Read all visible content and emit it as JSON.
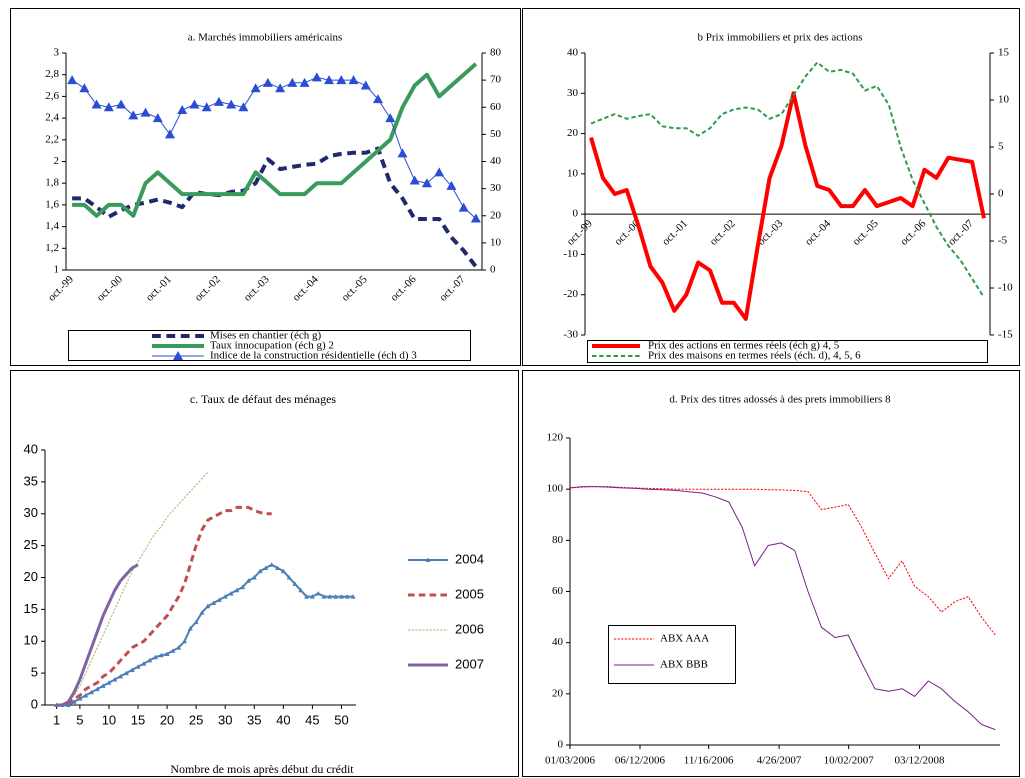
{
  "chart_data": [
    {
      "type": "line",
      "title": "a. Marchés immobiliers américains",
      "categories": [
        "oct.-99",
        null,
        null,
        null,
        "oct.-00",
        null,
        null,
        null,
        "oct.-01",
        null,
        null,
        null,
        "oct.-02",
        null,
        null,
        null,
        "oct.-03",
        null,
        null,
        null,
        "oct.-04",
        null,
        null,
        null,
        "oct.-05",
        null,
        null,
        null,
        "oct.-06",
        null,
        null,
        null,
        "oct.-07",
        null
      ],
      "ylim": [
        1,
        3
      ],
      "yticks": [
        1,
        {
          "value": 1.2,
          "label": "1,2"
        },
        {
          "value": 1.4,
          "label": "1,4"
        },
        {
          "value": 1.6,
          "label": "1,6"
        },
        {
          "value": 1.8,
          "label": "1,8"
        },
        2,
        {
          "value": 2.2,
          "label": "2,2"
        },
        {
          "value": 2.4,
          "label": "2,4"
        },
        {
          "value": 2.6,
          "label": "2,6"
        },
        {
          "value": 2.8,
          "label": "2,8"
        },
        3
      ],
      "y2lim": [
        0,
        80
      ],
      "y2ticks": [
        0,
        10,
        20,
        30,
        40,
        50,
        60,
        70,
        80
      ],
      "legend": "bottom",
      "series": [
        {
          "name": "Mises en chantier (éch g)",
          "color": "#1f2a6e",
          "linestyle": "dashed",
          "linewidth": 4,
          "values": [
            1.66,
            1.66,
            1.58,
            1.49,
            1.55,
            1.6,
            1.62,
            1.65,
            1.62,
            1.58,
            1.72,
            1.7,
            1.69,
            1.72,
            1.73,
            1.8,
            2.02,
            1.93,
            1.95,
            1.97,
            1.98,
            2.05,
            2.07,
            2.08,
            2.08,
            2.12,
            1.8,
            1.66,
            1.47,
            1.47,
            1.47,
            1.3,
            1.18,
            1.03
          ]
        },
        {
          "name": "Taux innocupation (éch g) 2",
          "color": "#3a9a5b",
          "linestyle": "solid",
          "linewidth": 4,
          "values": [
            1.6,
            1.6,
            1.5,
            1.6,
            1.6,
            1.5,
            1.8,
            1.9,
            1.8,
            1.7,
            1.7,
            1.7,
            1.7,
            1.7,
            1.7,
            1.9,
            1.8,
            1.7,
            1.7,
            1.7,
            1.8,
            1.8,
            1.8,
            1.9,
            2.0,
            2.1,
            2.2,
            2.5,
            2.7,
            2.8,
            2.6,
            2.7,
            2.8,
            2.9
          ]
        },
        {
          "name": "Indice de la construction résidentielle (éch d) 3",
          "color": "#2b4dd6",
          "linestyle": "solid",
          "linewidth": 1,
          "marker": "triangle",
          "axis": "y2",
          "values": [
            70,
            67,
            61,
            60,
            61,
            57,
            58,
            56,
            50,
            59,
            61,
            60,
            62,
            61,
            60,
            67,
            69,
            67,
            69,
            69,
            71,
            70,
            70,
            70,
            68,
            63,
            56,
            43,
            33,
            32,
            36,
            31,
            23,
            19
          ]
        }
      ]
    },
    {
      "type": "line",
      "title": "b Prix immobiliers et prix des actions",
      "categories": [
        "oct.-99",
        null,
        null,
        null,
        "oct.-00",
        null,
        null,
        null,
        "oct.-01",
        null,
        null,
        null,
        "oct.-02",
        null,
        null,
        null,
        "oct.-03",
        null,
        null,
        null,
        "oct.-04",
        null,
        null,
        null,
        "oct.-05",
        null,
        null,
        null,
        "oct.-06",
        null,
        null,
        null,
        "oct.-07",
        null
      ],
      "ylim": [
        -30,
        40
      ],
      "yticks": [
        -30,
        -20,
        -10,
        0,
        10,
        20,
        30,
        40
      ],
      "y2lim": [
        -15,
        15
      ],
      "y2ticks": [
        -15,
        -10,
        -5,
        0,
        5,
        10,
        15
      ],
      "legend": "bottom",
      "series": [
        {
          "name": "Prix des actions en termes réels (éch g) 4, 5",
          "color": "#ff0000",
          "linestyle": "solid",
          "linewidth": 4,
          "values": [
            19,
            9,
            5,
            6,
            -3,
            -13,
            -17,
            -24,
            -20,
            -12,
            -14,
            -22,
            -22,
            -26,
            -8,
            9,
            17,
            30,
            17,
            7,
            6,
            2,
            2,
            6,
            2,
            3,
            4,
            2,
            11,
            9,
            14,
            13.5,
            13,
            -1
          ]
        },
        {
          "name": "Prix des maisons en termes réels (éch. d), 4, 5, 6",
          "color": "#2e9a4a",
          "linestyle": "dashed",
          "linewidth": 2,
          "axis": "y2",
          "values": [
            7.5,
            8,
            8.5,
            8,
            8.3,
            8.5,
            7.2,
            7,
            7,
            6.2,
            7,
            8.5,
            9,
            9.2,
            9,
            8,
            8.5,
            10.5,
            12.5,
            14,
            13,
            13.2,
            12.8,
            11,
            11.5,
            9.5,
            5,
            1.5,
            -1,
            -3.5,
            -5.5,
            -7,
            -9,
            -11
          ]
        }
      ]
    },
    {
      "type": "line",
      "title": "c. Taux de défaut des ménages",
      "xlabel": "Nombre de mois après début du crédit",
      "x": [
        1,
        2,
        3,
        4,
        5,
        6,
        7,
        8,
        9,
        10,
        11,
        12,
        13,
        14,
        15,
        16,
        17,
        18,
        19,
        20,
        21,
        22,
        23,
        24,
        25,
        26,
        27,
        28,
        29,
        30,
        31,
        32,
        33,
        34,
        35,
        36,
        37,
        38,
        39,
        40,
        41,
        42,
        43,
        44,
        45,
        46,
        47,
        48,
        49,
        50,
        51,
        52
      ],
      "xlim": [
        -1,
        52.5
      ],
      "xticks": [
        1,
        5,
        10,
        15,
        20,
        25,
        30,
        35,
        40,
        45,
        50
      ],
      "ylim": [
        0,
        40
      ],
      "yticks": [
        0,
        5,
        10,
        15,
        20,
        25,
        30,
        35,
        40
      ],
      "legend": "right",
      "series": [
        {
          "name": "2004",
          "color": "#4a7ebb",
          "linestyle": "solid",
          "linewidth": 2,
          "marker": "triangle",
          "values": [
            0,
            0,
            0,
            0.5,
            1,
            1.5,
            2,
            2.5,
            3,
            3.5,
            4,
            4.5,
            5,
            5.5,
            6,
            6.5,
            7,
            7.5,
            7.8,
            8,
            8.5,
            9,
            10,
            12,
            13,
            14.5,
            15.5,
            16,
            16.5,
            17,
            17.5,
            18,
            18.5,
            19.5,
            20,
            21,
            21.5,
            22,
            21.5,
            21,
            20,
            19,
            18,
            17,
            17,
            17.5,
            17,
            17,
            17,
            17,
            17,
            17
          ]
        },
        {
          "name": "2005",
          "color": "#c0504d",
          "linestyle": "dashed",
          "linewidth": 3,
          "values": [
            0,
            0,
            0.3,
            1,
            1.5,
            2.5,
            3,
            3.5,
            4.5,
            5,
            6,
            7,
            8,
            9,
            9.5,
            10,
            11,
            12,
            13,
            14,
            15.5,
            17,
            19,
            22,
            25,
            27.5,
            29,
            29.5,
            30,
            30.5,
            30.5,
            31,
            31,
            31,
            30.5,
            30.2,
            30,
            30,
            null,
            null,
            null,
            null,
            null,
            null,
            null,
            null,
            null,
            null,
            null,
            null,
            null,
            null
          ]
        },
        {
          "name": "2006",
          "color": "#9bbb59",
          "linestyle": "dashed",
          "linewidth": 1,
          "values": [
            0,
            0,
            0.5,
            1.5,
            3,
            5,
            7,
            9,
            11,
            13,
            15,
            17,
            19,
            21,
            22.5,
            24,
            25.5,
            27,
            28,
            29.5,
            30.5,
            31.5,
            32.5,
            33.5,
            34.5,
            35.5,
            36.5,
            null,
            null,
            null,
            null,
            null,
            null,
            null,
            null,
            null,
            null,
            null,
            null,
            null,
            null,
            null,
            null,
            null,
            null,
            null,
            null,
            null,
            null,
            null,
            null,
            null
          ]
        },
        {
          "name": "2007",
          "color": "#8064a2",
          "linestyle": "solid",
          "linewidth": 3,
          "values": [
            0,
            0,
            0.5,
            2,
            4,
            6.5,
            9,
            11.5,
            14,
            16,
            18,
            19.5,
            20.5,
            21.5,
            22,
            null,
            null,
            null,
            null,
            null,
            null,
            null,
            null,
            null,
            null,
            null,
            null,
            null,
            null,
            null,
            null,
            null,
            null,
            null,
            null,
            null,
            null,
            null,
            null,
            null,
            null,
            null,
            null,
            null,
            null,
            null,
            null,
            null,
            null,
            null,
            null,
            null
          ]
        }
      ]
    },
    {
      "type": "line",
      "title": "d. Prix des titres adossés à des prets immobiliers 8",
      "x": [
        "2006-01-03",
        "2006-02-01",
        "2006-03-01",
        "2006-04-01",
        "2006-05-01",
        "2006-06-01",
        "2006-07-01",
        "2006-08-01",
        "2006-09-01",
        "2006-10-01",
        "2006-11-01",
        "2006-12-01",
        "2007-01-01",
        "2007-02-01",
        "2007-03-01",
        "2007-04-01",
        "2007-05-01",
        "2007-06-01",
        "2007-07-01",
        "2007-08-01",
        "2007-09-01",
        "2007-10-01",
        "2007-11-01",
        "2007-12-01",
        "2008-01-01",
        "2008-02-01",
        "2008-03-01",
        "2008-04-01",
        "2008-05-01",
        "2008-06-01",
        "2008-07-01",
        "2008-08-01",
        "2008-09-01"
      ],
      "xlim": [
        "2006-01-03",
        "2008-09-12"
      ],
      "xticks": [
        {
          "value": "2006-01-03",
          "label": "01/03/2006"
        },
        {
          "value": "2006-06-12",
          "label": "06/12/2006"
        },
        {
          "value": "2006-11-16",
          "label": "11/16/2006"
        },
        {
          "value": "2007-04-26",
          "label": "4/26/2007"
        },
        {
          "value": "2007-10-02",
          "label": "10/02/2007"
        },
        {
          "value": "2008-03-12",
          "label": "03/12/2008"
        }
      ],
      "ylim": [
        0,
        120
      ],
      "yticks": [
        0,
        20,
        40,
        60,
        80,
        100,
        120
      ],
      "legend": "inside",
      "series": [
        {
          "name": "ABX AAA",
          "color": "#ff0000",
          "linestyle": "dashed",
          "linewidth": 1,
          "values": [
            100.5,
            100.8,
            101,
            101,
            100.7,
            100.5,
            100.3,
            100.2,
            100,
            100,
            100,
            100,
            100,
            100,
            100,
            99.8,
            99.7,
            99.5,
            99,
            92,
            93,
            94,
            85,
            75,
            65,
            72,
            62,
            58,
            52,
            56,
            58,
            50,
            43
          ]
        },
        {
          "name": "ABX BBB",
          "color": "#7a1f8a",
          "linestyle": "solid",
          "linewidth": 1,
          "values": [
            100.5,
            101,
            101,
            100.8,
            100.5,
            100.3,
            100,
            99.8,
            99.5,
            99,
            98.5,
            97,
            95,
            85,
            70,
            78,
            79,
            76,
            60,
            46,
            42,
            43,
            32,
            22,
            21,
            22,
            19,
            25,
            22,
            17,
            13,
            8,
            6
          ]
        }
      ]
    }
  ]
}
